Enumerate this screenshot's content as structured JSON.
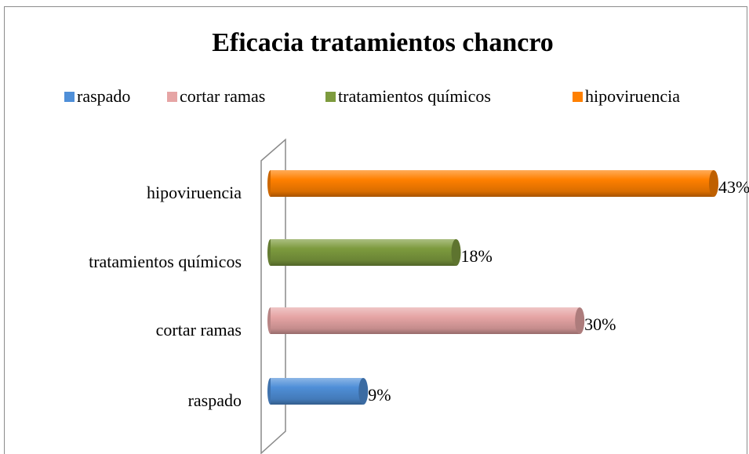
{
  "chart_data": {
    "type": "bar",
    "orientation": "horizontal",
    "title": "Eficacia tratamientos chancro",
    "categories": [
      "raspado",
      "cortar ramas",
      "tratamientos químicos",
      "hipoviruencia"
    ],
    "values": [
      9,
      30,
      18,
      43
    ],
    "value_labels": [
      "9%",
      "30%",
      "18%",
      "43%"
    ],
    "colors": [
      "#4f8fd8",
      "#e6a5a5",
      "#7d9b3e",
      "#ff8000"
    ],
    "legend": "top"
  }
}
